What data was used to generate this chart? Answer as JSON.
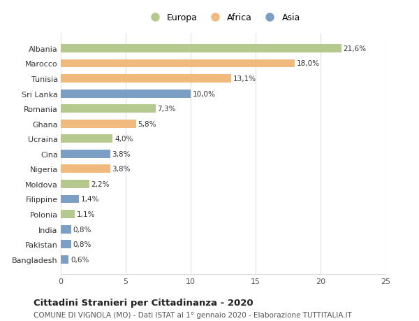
{
  "countries": [
    "Albania",
    "Marocco",
    "Tunisia",
    "Sri Lanka",
    "Romania",
    "Ghana",
    "Ucraina",
    "Cina",
    "Nigeria",
    "Moldova",
    "Filippine",
    "Polonia",
    "India",
    "Pakistan",
    "Bangladesh"
  ],
  "values": [
    21.6,
    18.0,
    13.1,
    10.0,
    7.3,
    5.8,
    4.0,
    3.8,
    3.8,
    2.2,
    1.4,
    1.1,
    0.8,
    0.8,
    0.6
  ],
  "labels": [
    "21,6%",
    "18,0%",
    "13,1%",
    "10,0%",
    "7,3%",
    "5,8%",
    "4,0%",
    "3,8%",
    "3,8%",
    "2,2%",
    "1,4%",
    "1,1%",
    "0,8%",
    "0,8%",
    "0,6%"
  ],
  "continents": [
    "Europa",
    "Africa",
    "Africa",
    "Asia",
    "Europa",
    "Africa",
    "Europa",
    "Asia",
    "Africa",
    "Europa",
    "Asia",
    "Europa",
    "Asia",
    "Asia",
    "Asia"
  ],
  "colors": {
    "Europa": "#b5c98e",
    "Africa": "#f0b97d",
    "Asia": "#7b9ec5"
  },
  "legend_labels": [
    "Europa",
    "Africa",
    "Asia"
  ],
  "title": "Cittadini Stranieri per Cittadinanza - 2020",
  "subtitle": "COMUNE DI VIGNOLA (MO) - Dati ISTAT al 1° gennaio 2020 - Elaborazione TUTTITALIA.IT",
  "xlim": [
    0,
    25
  ],
  "xticks": [
    0,
    5,
    10,
    15,
    20,
    25
  ],
  "background_color": "#ffffff",
  "grid_color": "#e0e0e0",
  "bar_height": 0.55,
  "label_fontsize": 7.5,
  "tick_fontsize": 8.0,
  "title_fontsize": 9.5,
  "subtitle_fontsize": 7.5,
  "legend_fontsize": 9.0
}
